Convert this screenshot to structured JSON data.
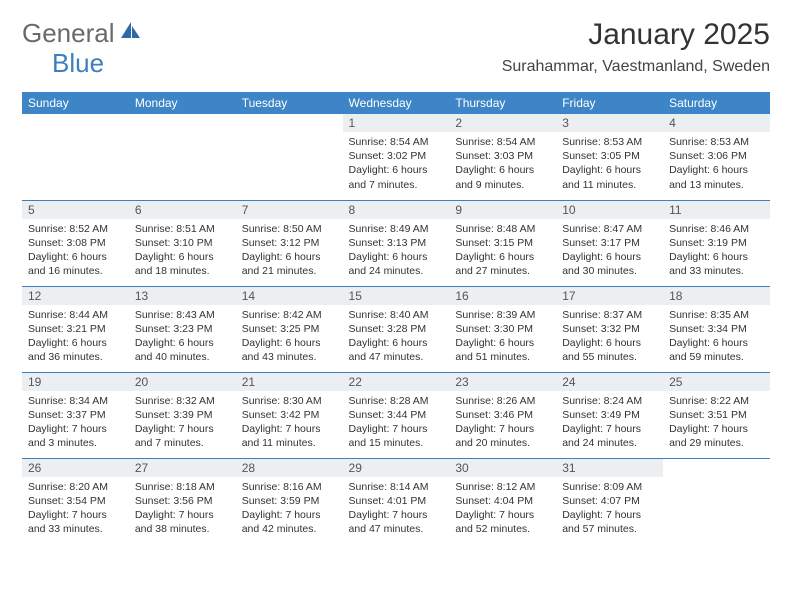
{
  "brand": {
    "part1": "General",
    "part2": "Blue"
  },
  "title": {
    "month": "January 2025",
    "location": "Surahammar, Vaestmanland, Sweden"
  },
  "colors": {
    "header_bg": "#3d85c6",
    "rule": "#3d7fbf",
    "daynum_bg": "#eceff1",
    "text": "#333333",
    "brand_gray": "#6a6a6a",
    "brand_blue": "#3d7fbf"
  },
  "calendar": {
    "columns": [
      "Sunday",
      "Monday",
      "Tuesday",
      "Wednesday",
      "Thursday",
      "Friday",
      "Saturday"
    ],
    "weeks": [
      [
        {
          "num": "",
          "lines": []
        },
        {
          "num": "",
          "lines": []
        },
        {
          "num": "",
          "lines": []
        },
        {
          "num": "1",
          "lines": [
            "Sunrise: 8:54 AM",
            "Sunset: 3:02 PM",
            "Daylight: 6 hours",
            "and 7 minutes."
          ]
        },
        {
          "num": "2",
          "lines": [
            "Sunrise: 8:54 AM",
            "Sunset: 3:03 PM",
            "Daylight: 6 hours",
            "and 9 minutes."
          ]
        },
        {
          "num": "3",
          "lines": [
            "Sunrise: 8:53 AM",
            "Sunset: 3:05 PM",
            "Daylight: 6 hours",
            "and 11 minutes."
          ]
        },
        {
          "num": "4",
          "lines": [
            "Sunrise: 8:53 AM",
            "Sunset: 3:06 PM",
            "Daylight: 6 hours",
            "and 13 minutes."
          ]
        }
      ],
      [
        {
          "num": "5",
          "lines": [
            "Sunrise: 8:52 AM",
            "Sunset: 3:08 PM",
            "Daylight: 6 hours",
            "and 16 minutes."
          ]
        },
        {
          "num": "6",
          "lines": [
            "Sunrise: 8:51 AM",
            "Sunset: 3:10 PM",
            "Daylight: 6 hours",
            "and 18 minutes."
          ]
        },
        {
          "num": "7",
          "lines": [
            "Sunrise: 8:50 AM",
            "Sunset: 3:12 PM",
            "Daylight: 6 hours",
            "and 21 minutes."
          ]
        },
        {
          "num": "8",
          "lines": [
            "Sunrise: 8:49 AM",
            "Sunset: 3:13 PM",
            "Daylight: 6 hours",
            "and 24 minutes."
          ]
        },
        {
          "num": "9",
          "lines": [
            "Sunrise: 8:48 AM",
            "Sunset: 3:15 PM",
            "Daylight: 6 hours",
            "and 27 minutes."
          ]
        },
        {
          "num": "10",
          "lines": [
            "Sunrise: 8:47 AM",
            "Sunset: 3:17 PM",
            "Daylight: 6 hours",
            "and 30 minutes."
          ]
        },
        {
          "num": "11",
          "lines": [
            "Sunrise: 8:46 AM",
            "Sunset: 3:19 PM",
            "Daylight: 6 hours",
            "and 33 minutes."
          ]
        }
      ],
      [
        {
          "num": "12",
          "lines": [
            "Sunrise: 8:44 AM",
            "Sunset: 3:21 PM",
            "Daylight: 6 hours",
            "and 36 minutes."
          ]
        },
        {
          "num": "13",
          "lines": [
            "Sunrise: 8:43 AM",
            "Sunset: 3:23 PM",
            "Daylight: 6 hours",
            "and 40 minutes."
          ]
        },
        {
          "num": "14",
          "lines": [
            "Sunrise: 8:42 AM",
            "Sunset: 3:25 PM",
            "Daylight: 6 hours",
            "and 43 minutes."
          ]
        },
        {
          "num": "15",
          "lines": [
            "Sunrise: 8:40 AM",
            "Sunset: 3:28 PM",
            "Daylight: 6 hours",
            "and 47 minutes."
          ]
        },
        {
          "num": "16",
          "lines": [
            "Sunrise: 8:39 AM",
            "Sunset: 3:30 PM",
            "Daylight: 6 hours",
            "and 51 minutes."
          ]
        },
        {
          "num": "17",
          "lines": [
            "Sunrise: 8:37 AM",
            "Sunset: 3:32 PM",
            "Daylight: 6 hours",
            "and 55 minutes."
          ]
        },
        {
          "num": "18",
          "lines": [
            "Sunrise: 8:35 AM",
            "Sunset: 3:34 PM",
            "Daylight: 6 hours",
            "and 59 minutes."
          ]
        }
      ],
      [
        {
          "num": "19",
          "lines": [
            "Sunrise: 8:34 AM",
            "Sunset: 3:37 PM",
            "Daylight: 7 hours",
            "and 3 minutes."
          ]
        },
        {
          "num": "20",
          "lines": [
            "Sunrise: 8:32 AM",
            "Sunset: 3:39 PM",
            "Daylight: 7 hours",
            "and 7 minutes."
          ]
        },
        {
          "num": "21",
          "lines": [
            "Sunrise: 8:30 AM",
            "Sunset: 3:42 PM",
            "Daylight: 7 hours",
            "and 11 minutes."
          ]
        },
        {
          "num": "22",
          "lines": [
            "Sunrise: 8:28 AM",
            "Sunset: 3:44 PM",
            "Daylight: 7 hours",
            "and 15 minutes."
          ]
        },
        {
          "num": "23",
          "lines": [
            "Sunrise: 8:26 AM",
            "Sunset: 3:46 PM",
            "Daylight: 7 hours",
            "and 20 minutes."
          ]
        },
        {
          "num": "24",
          "lines": [
            "Sunrise: 8:24 AM",
            "Sunset: 3:49 PM",
            "Daylight: 7 hours",
            "and 24 minutes."
          ]
        },
        {
          "num": "25",
          "lines": [
            "Sunrise: 8:22 AM",
            "Sunset: 3:51 PM",
            "Daylight: 7 hours",
            "and 29 minutes."
          ]
        }
      ],
      [
        {
          "num": "26",
          "lines": [
            "Sunrise: 8:20 AM",
            "Sunset: 3:54 PM",
            "Daylight: 7 hours",
            "and 33 minutes."
          ]
        },
        {
          "num": "27",
          "lines": [
            "Sunrise: 8:18 AM",
            "Sunset: 3:56 PM",
            "Daylight: 7 hours",
            "and 38 minutes."
          ]
        },
        {
          "num": "28",
          "lines": [
            "Sunrise: 8:16 AM",
            "Sunset: 3:59 PM",
            "Daylight: 7 hours",
            "and 42 minutes."
          ]
        },
        {
          "num": "29",
          "lines": [
            "Sunrise: 8:14 AM",
            "Sunset: 4:01 PM",
            "Daylight: 7 hours",
            "and 47 minutes."
          ]
        },
        {
          "num": "30",
          "lines": [
            "Sunrise: 8:12 AM",
            "Sunset: 4:04 PM",
            "Daylight: 7 hours",
            "and 52 minutes."
          ]
        },
        {
          "num": "31",
          "lines": [
            "Sunrise: 8:09 AM",
            "Sunset: 4:07 PM",
            "Daylight: 7 hours",
            "and 57 minutes."
          ]
        },
        {
          "num": "",
          "lines": []
        }
      ]
    ]
  }
}
